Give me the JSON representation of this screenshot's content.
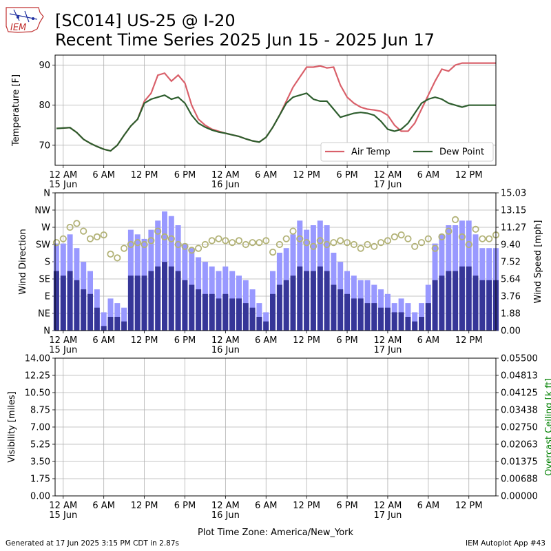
{
  "title_line1": "[SC014] US-25 @ I-20",
  "title_line2": "Recent Time Series 2025 Jun 15 - 2025 Jun 17",
  "logo_text": "IEM",
  "footer_left": "Generated at 17 Jun 2025 3:15 PM CDT in 2.87s",
  "footer_right": "IEM Autoplot App #43",
  "timezone_label": "Plot Time Zone: America/New_York",
  "colors": {
    "air_temp": "#d9606a",
    "dew_point": "#2e5e2e",
    "gust": "#9999ff",
    "speed": "#363698",
    "direction": "#b3b378",
    "ceiling_label": "#008000",
    "grid": "#b0b0b0"
  },
  "chart_data": [
    {
      "type": "line",
      "name": "temperature",
      "xlabels": [
        {
          "hour": 0,
          "line1": "12 AM",
          "line2": "15 Jun"
        },
        {
          "hour": 6,
          "line1": "6 AM",
          "line2": ""
        },
        {
          "hour": 12,
          "line1": "12 PM",
          "line2": ""
        },
        {
          "hour": 18,
          "line1": "6 PM",
          "line2": ""
        },
        {
          "hour": 24,
          "line1": "12 AM",
          "line2": "16 Jun"
        },
        {
          "hour": 30,
          "line1": "6 AM",
          "line2": ""
        },
        {
          "hour": 36,
          "line1": "12 PM",
          "line2": ""
        },
        {
          "hour": 42,
          "line1": "6 PM",
          "line2": ""
        },
        {
          "hour": 48,
          "line1": "12 AM",
          "line2": "17 Jun"
        },
        {
          "hour": 54,
          "line1": "6 AM",
          "line2": ""
        },
        {
          "hour": 60,
          "line1": "12 PM",
          "line2": ""
        }
      ],
      "xlim": [
        -1.2,
        64
      ],
      "ylabel": "Temperature [F]",
      "ylim": [
        65,
        92.5
      ],
      "yticks": [
        70,
        80,
        90
      ],
      "legend": "lower-right",
      "grid": true,
      "series": [
        {
          "name": "Air Temp",
          "key": "air_temp",
          "x": [
            -1,
            0,
            1,
            2,
            3,
            4,
            5,
            6,
            7,
            8,
            9,
            10,
            11,
            12,
            13,
            14,
            15,
            16,
            17,
            18,
            19,
            20,
            21,
            22,
            23,
            24,
            25,
            26,
            27,
            28,
            29,
            30,
            31,
            32,
            33,
            34,
            35,
            36,
            37,
            38,
            39,
            40,
            41,
            42,
            43,
            44,
            45,
            46,
            47,
            48,
            49,
            50,
            51,
            52,
            53,
            54,
            55,
            56,
            57,
            58,
            59,
            60,
            61,
            62,
            63,
            64
          ],
          "y": [
            74.2,
            74.3,
            74.4,
            73.2,
            71.5,
            70.5,
            69.7,
            69.0,
            68.6,
            70.0,
            72.5,
            74.8,
            76.5,
            81.0,
            83.0,
            87.5,
            88.0,
            86.0,
            87.5,
            85.5,
            80.0,
            76.5,
            75.0,
            74.0,
            73.5,
            73.0,
            72.6,
            72.2,
            71.6,
            71.1,
            70.8,
            72.0,
            74.5,
            77.5,
            81.0,
            84.5,
            87.0,
            89.5,
            89.5,
            89.8,
            89.3,
            89.5,
            85.0,
            82.0,
            80.5,
            79.5,
            79.0,
            78.8,
            78.5,
            77.5,
            75.0,
            73.5,
            73.5,
            75.5,
            79.0,
            82.5,
            86.0,
            89.0,
            88.5,
            90.0,
            90.5,
            90.5,
            90.5,
            90.5,
            90.5,
            90.5
          ]
        },
        {
          "name": "Dew Point",
          "key": "dew_point",
          "x": [
            -1,
            0,
            1,
            2,
            3,
            4,
            5,
            6,
            7,
            8,
            9,
            10,
            11,
            12,
            13,
            14,
            15,
            16,
            17,
            18,
            19,
            20,
            21,
            22,
            23,
            24,
            25,
            26,
            27,
            28,
            29,
            30,
            31,
            32,
            33,
            34,
            35,
            36,
            37,
            38,
            39,
            40,
            41,
            42,
            43,
            44,
            45,
            46,
            47,
            48,
            49,
            50,
            51,
            52,
            53,
            54,
            55,
            56,
            57,
            58,
            59,
            60,
            61,
            62,
            63,
            64
          ],
          "y": [
            74.2,
            74.3,
            74.4,
            73.2,
            71.5,
            70.5,
            69.7,
            69.0,
            68.6,
            70.0,
            72.5,
            74.8,
            76.5,
            80.5,
            81.5,
            82.0,
            82.5,
            81.5,
            82.0,
            80.5,
            77.5,
            75.5,
            74.5,
            73.8,
            73.3,
            73.0,
            72.6,
            72.2,
            71.6,
            71.1,
            70.8,
            72.0,
            74.5,
            77.5,
            80.5,
            82.0,
            82.5,
            83.0,
            81.5,
            81.0,
            81.0,
            79.0,
            77.0,
            77.5,
            78.0,
            78.2,
            78.0,
            77.5,
            76.0,
            74.0,
            73.5,
            74.0,
            75.5,
            78.0,
            80.5,
            81.5,
            82.0,
            81.5,
            80.5,
            80.0,
            79.5,
            80.0,
            80.0,
            80.0,
            80.0,
            80.0
          ]
        }
      ]
    },
    {
      "type": "bar",
      "name": "wind",
      "xlim": [
        -1.2,
        64
      ],
      "ylabel_left": "Wind Direction",
      "ylabel_right": "Wind Speed [mph]",
      "yticks_left": [
        "N",
        "NE",
        "E",
        "SE",
        "S",
        "SW",
        "W",
        "NW",
        "N"
      ],
      "yticks_right": [
        "0.00",
        "1.88",
        "3.76",
        "5.64",
        "7.52",
        "9.40",
        "11.27",
        "13.15",
        "15.03"
      ],
      "speed_max": 15.03,
      "grid": true,
      "hours": [
        -1,
        0,
        1,
        2,
        3,
        4,
        5,
        6,
        7,
        8,
        9,
        10,
        11,
        12,
        13,
        14,
        15,
        16,
        17,
        18,
        19,
        20,
        21,
        22,
        23,
        24,
        25,
        26,
        27,
        28,
        29,
        30,
        31,
        32,
        33,
        34,
        35,
        36,
        37,
        38,
        39,
        40,
        41,
        42,
        43,
        44,
        45,
        46,
        47,
        48,
        49,
        50,
        51,
        52,
        53,
        54,
        55,
        56,
        57,
        58,
        59,
        60,
        61,
        62,
        63,
        64
      ],
      "series": [
        {
          "name": "Wind Gust",
          "key": "gust",
          "values": [
            9.5,
            9.5,
            10.5,
            9.0,
            7.5,
            6.5,
            4.5,
            2.0,
            3.5,
            3.0,
            2.5,
            11.0,
            10.5,
            10.0,
            11.0,
            12.0,
            13.0,
            12.5,
            11.5,
            9.5,
            9.0,
            8.0,
            7.5,
            7.0,
            6.5,
            7.0,
            6.5,
            6.0,
            5.5,
            4.5,
            3.0,
            2.0,
            6.5,
            8.5,
            9.0,
            10.5,
            12.0,
            11.0,
            11.5,
            12.0,
            11.5,
            8.5,
            7.5,
            6.5,
            6.0,
            5.5,
            5.5,
            5.0,
            4.5,
            4.0,
            3.0,
            3.5,
            3.0,
            2.0,
            3.0,
            5.0,
            9.5,
            10.5,
            11.5,
            11.5,
            12.0,
            12.0,
            10.5,
            9.0,
            9.0,
            9.0
          ]
        },
        {
          "name": "Wind Speed",
          "key": "speed",
          "values": [
            6.5,
            6.0,
            6.5,
            5.5,
            4.5,
            4.0,
            2.5,
            0.5,
            1.5,
            1.5,
            1.0,
            6.0,
            6.0,
            6.0,
            6.5,
            7.0,
            7.5,
            7.0,
            6.5,
            5.5,
            5.0,
            4.5,
            4.0,
            4.0,
            3.5,
            4.0,
            3.5,
            3.5,
            3.0,
            2.5,
            1.5,
            1.0,
            4.0,
            5.0,
            5.5,
            6.0,
            7.0,
            6.5,
            6.5,
            7.0,
            6.5,
            5.0,
            4.5,
            4.0,
            3.5,
            3.5,
            3.0,
            3.0,
            2.5,
            2.5,
            2.0,
            2.0,
            1.5,
            1.0,
            1.5,
            3.0,
            5.5,
            6.0,
            6.5,
            6.5,
            7.0,
            7.0,
            6.0,
            5.5,
            5.5,
            5.5
          ]
        },
        {
          "name": "Wind Direction",
          "key": "direction",
          "values_deg": [
            230,
            240,
            270,
            280,
            260,
            240,
            245,
            250,
            200,
            190,
            215,
            225,
            230,
            225,
            235,
            260,
            245,
            240,
            225,
            220,
            210,
            215,
            225,
            235,
            240,
            235,
            230,
            235,
            225,
            230,
            230,
            235,
            205,
            225,
            240,
            260,
            240,
            230,
            220,
            235,
            225,
            230,
            235,
            230,
            225,
            215,
            225,
            220,
            230,
            235,
            245,
            250,
            240,
            220,
            230,
            240,
            215,
            245,
            260,
            290,
            245,
            225,
            265,
            240,
            240,
            250
          ]
        }
      ]
    },
    {
      "type": "line",
      "name": "visibility",
      "xlim": [
        -1.2,
        64
      ],
      "ylabel_left": "Visibility [miles]",
      "ylabel_right": "Overcast Ceiling [k ft]",
      "yticks_left": [
        "0.00",
        "1.75",
        "3.50",
        "5.25",
        "7.00",
        "8.75",
        "10.50",
        "12.25",
        "14.00"
      ],
      "yticks_right": [
        "0.00000",
        "0.00688",
        "0.01375",
        "0.02063",
        "0.02750",
        "0.03438",
        "0.04125",
        "0.04813",
        "0.05500"
      ],
      "grid": true,
      "series": []
    }
  ]
}
